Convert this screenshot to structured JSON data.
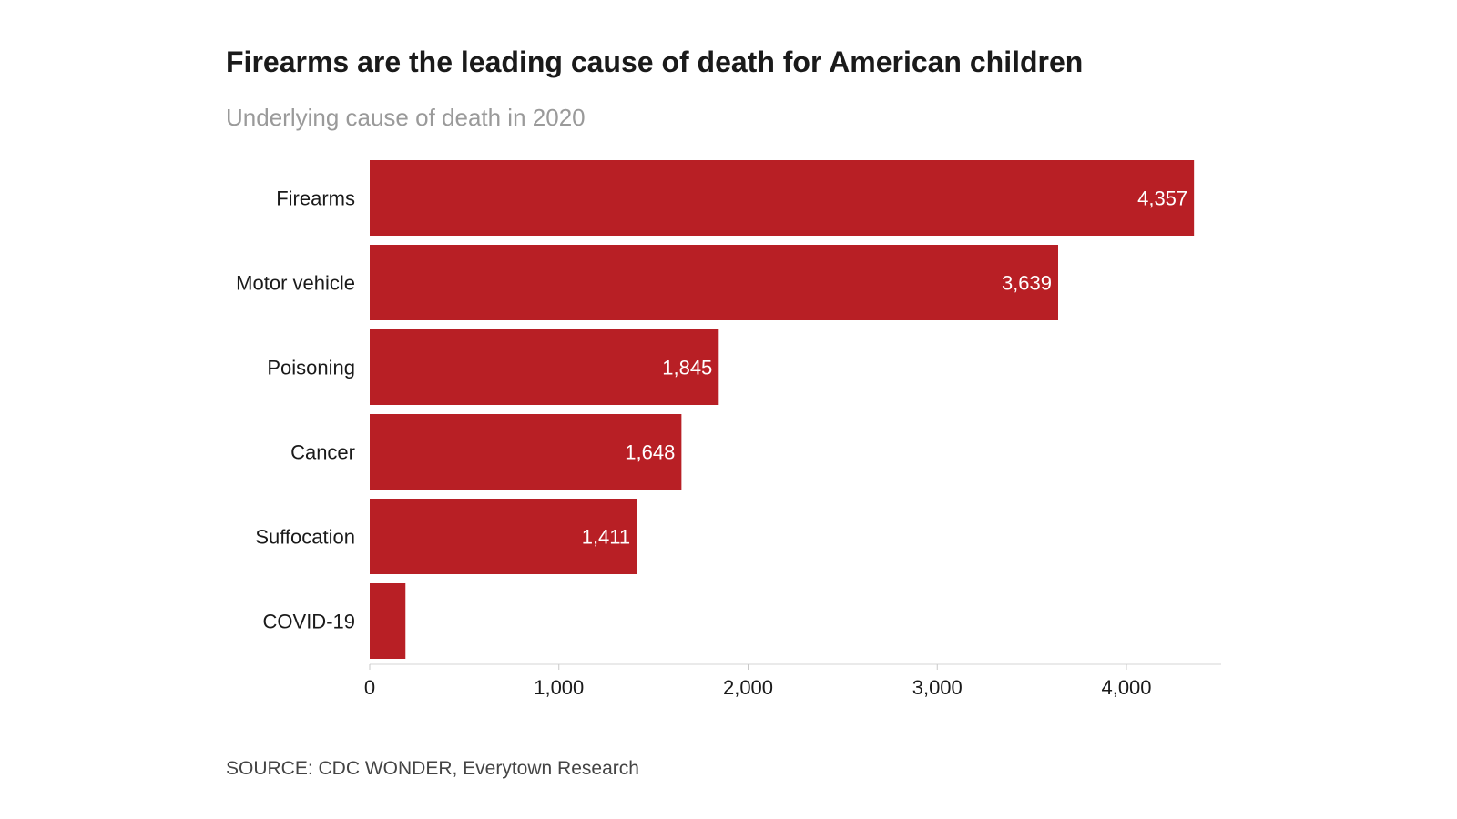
{
  "chart_data": {
    "type": "bar",
    "orientation": "horizontal",
    "title": "Firearms are the leading cause of death for American children",
    "subtitle": "Underlying cause of death in 2020",
    "categories": [
      "Firearms",
      "Motor vehicle",
      "Poisoning",
      "Cancer",
      "Suffocation",
      "COVID-19"
    ],
    "values": [
      4357,
      3639,
      1845,
      1648,
      1411,
      189
    ],
    "value_labels": [
      "4,357",
      "3,639",
      "1,845",
      "1,648",
      "1,411",
      ""
    ],
    "xlim": [
      0,
      4500
    ],
    "xticks": [
      0,
      1000,
      2000,
      3000,
      4000
    ],
    "xtick_labels": [
      "0",
      "1,000",
      "2,000",
      "3,000",
      "4,000"
    ],
    "xlabel": "",
    "ylabel": "",
    "source": "SOURCE: CDC WONDER, Everytown Research",
    "bar_color": "#b81f25",
    "label_color": "#ffffff"
  }
}
